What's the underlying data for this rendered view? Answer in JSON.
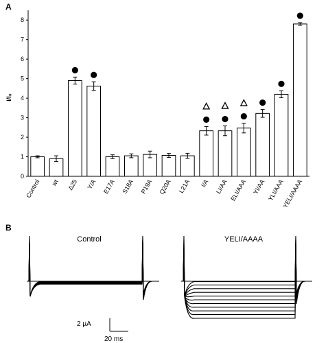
{
  "panels": {
    "a": "A",
    "b": "B"
  },
  "chart_data": [
    {
      "type": "bar",
      "ylabel": "I/I₀",
      "ylim": [
        0,
        8.5
      ],
      "yticks": [
        0,
        1,
        2,
        3,
        4,
        5,
        6,
        7,
        8
      ],
      "categories": [
        "Control",
        "wt",
        "Δ25",
        "Y/A",
        "E17A",
        "S18A",
        "P19A",
        "Q20A",
        "L21A",
        "I/A",
        "LI/AA",
        "ELI/AAA",
        "YI/AA",
        "YLI/AAA",
        "YELI/AAAA"
      ],
      "values": [
        1.0,
        0.9,
        4.9,
        4.62,
        1.0,
        1.05,
        1.12,
        1.07,
        1.05,
        2.33,
        2.33,
        2.47,
        3.22,
        4.2,
        7.8
      ],
      "errors": [
        0.05,
        0.15,
        0.18,
        0.22,
        0.1,
        0.1,
        0.17,
        0.1,
        0.13,
        0.22,
        0.25,
        0.25,
        0.2,
        0.18,
        0.07
      ],
      "filled_circle_markers": [
        "Δ25",
        "Y/A",
        "I/A",
        "LI/AA",
        "ELI/AAA",
        "YI/AA",
        "YLI/AAA",
        "YELI/AAAA"
      ],
      "open_triangle_markers": [
        "I/A",
        "LI/AA",
        "ELI/AAA"
      ],
      "bar_color": "#ffffff",
      "edge_color": "#000000",
      "grid": false
    },
    {
      "type": "line",
      "panel": "B",
      "traces": [
        {
          "title": "Control",
          "steady_currents": [
            -0.02,
            -0.04,
            -0.06,
            -0.08,
            -0.1,
            -0.12,
            -0.14
          ]
        },
        {
          "title": "YELI/AAAA",
          "steady_currents": [
            -0.02,
            -0.18,
            -0.36,
            -0.54,
            -0.72,
            -0.9,
            -1.08,
            -1.26,
            -1.44,
            -1.62,
            -1.8
          ]
        }
      ],
      "scale_bar": {
        "current": "2 µA",
        "time": "20 ms"
      }
    }
  ]
}
